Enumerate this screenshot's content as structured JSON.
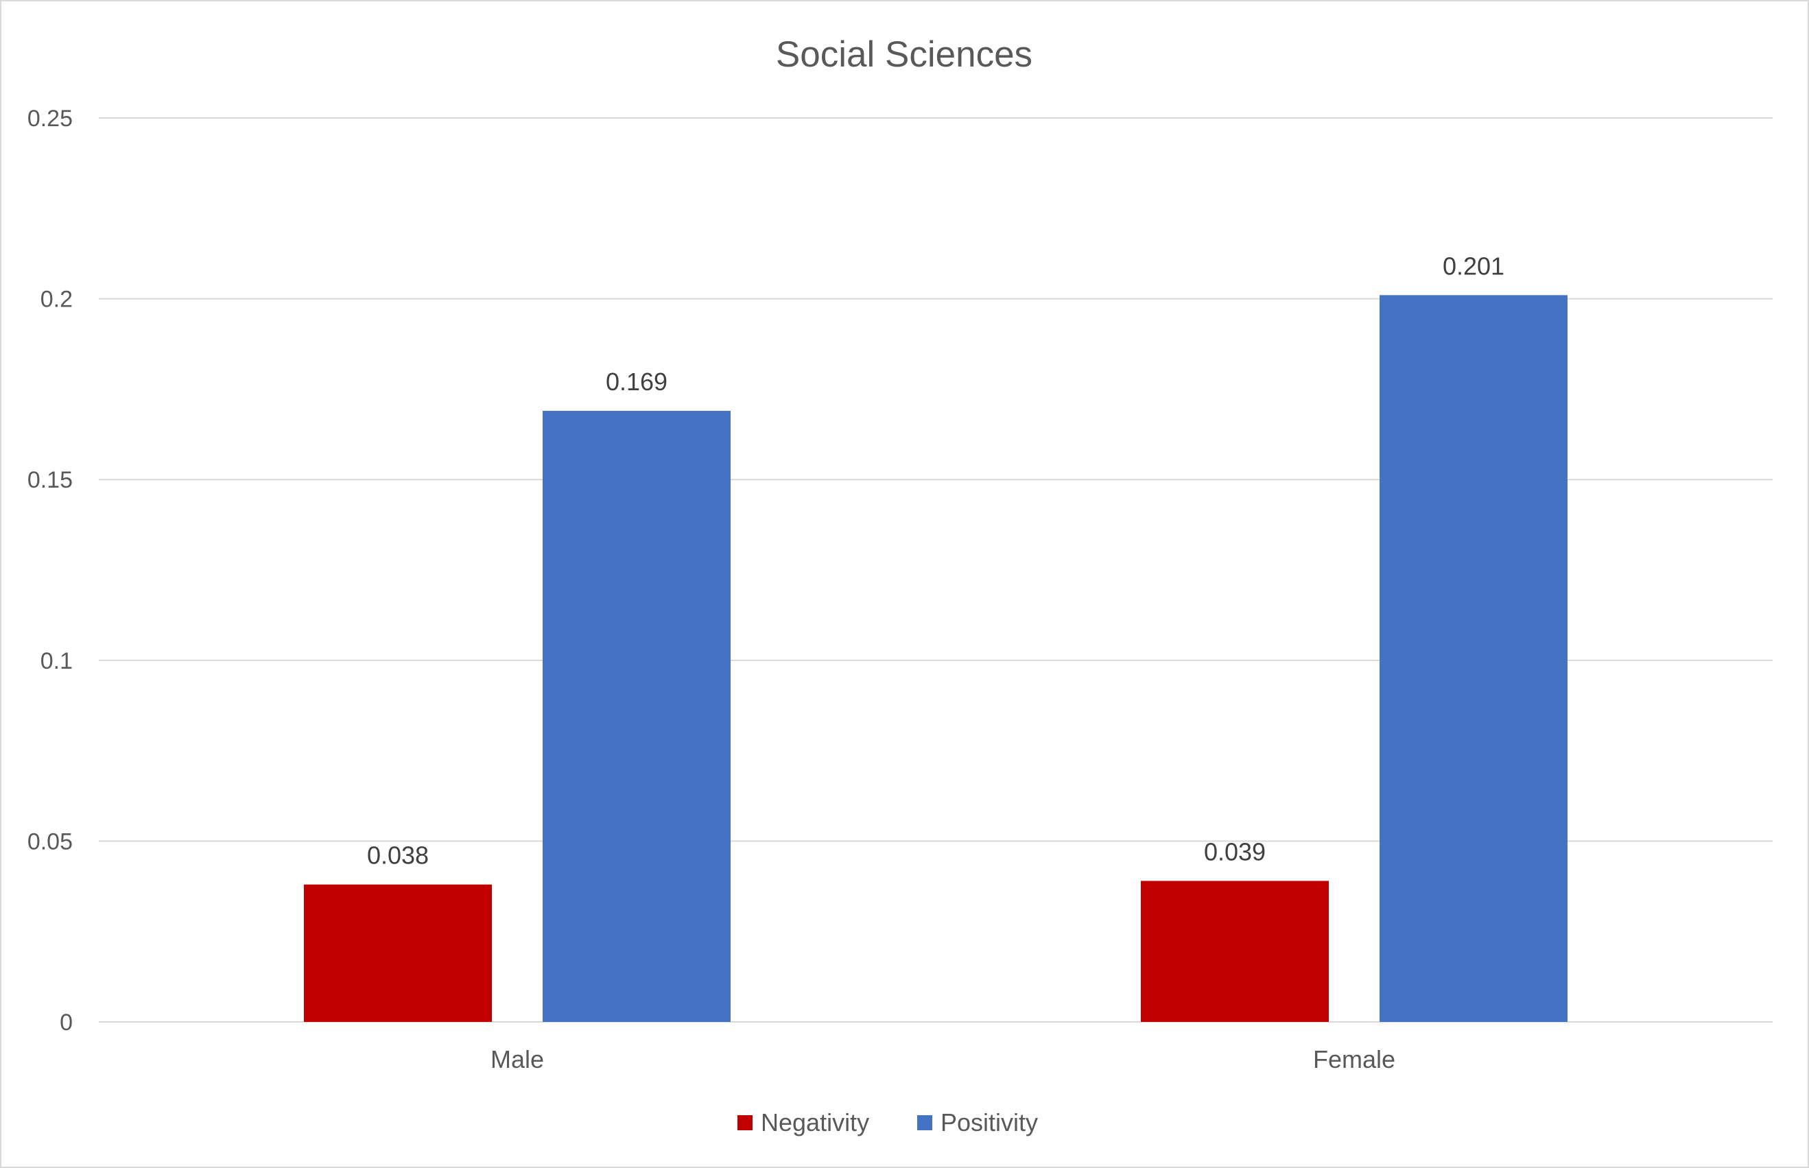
{
  "chart_data": {
    "type": "bar",
    "title": "Social Sciences",
    "xlabel": "",
    "ylabel": "",
    "categories": [
      "Male",
      "Female"
    ],
    "series": [
      {
        "name": "Negativity",
        "values": [
          0.038,
          0.039
        ],
        "labels": [
          "0.038",
          "0.039"
        ],
        "color": "#C00000"
      },
      {
        "name": "Positivity",
        "values": [
          0.169,
          0.201
        ],
        "labels": [
          "0.169",
          "0.201"
        ],
        "color": "#4472C4"
      }
    ],
    "ylim": [
      0,
      0.25
    ],
    "yticks": [
      {
        "value": 0,
        "label": "0"
      },
      {
        "value": 0.05,
        "label": "0.05"
      },
      {
        "value": 0.1,
        "label": "0.1"
      },
      {
        "value": 0.15,
        "label": "0.15"
      },
      {
        "value": 0.2,
        "label": "0.2"
      },
      {
        "value": 0.25,
        "label": "0.25"
      }
    ],
    "grid": true,
    "legend_position": "bottom",
    "colors": {
      "gridline": "#d9d9d9",
      "text": "#595959",
      "border": "#d9d9d9"
    }
  }
}
